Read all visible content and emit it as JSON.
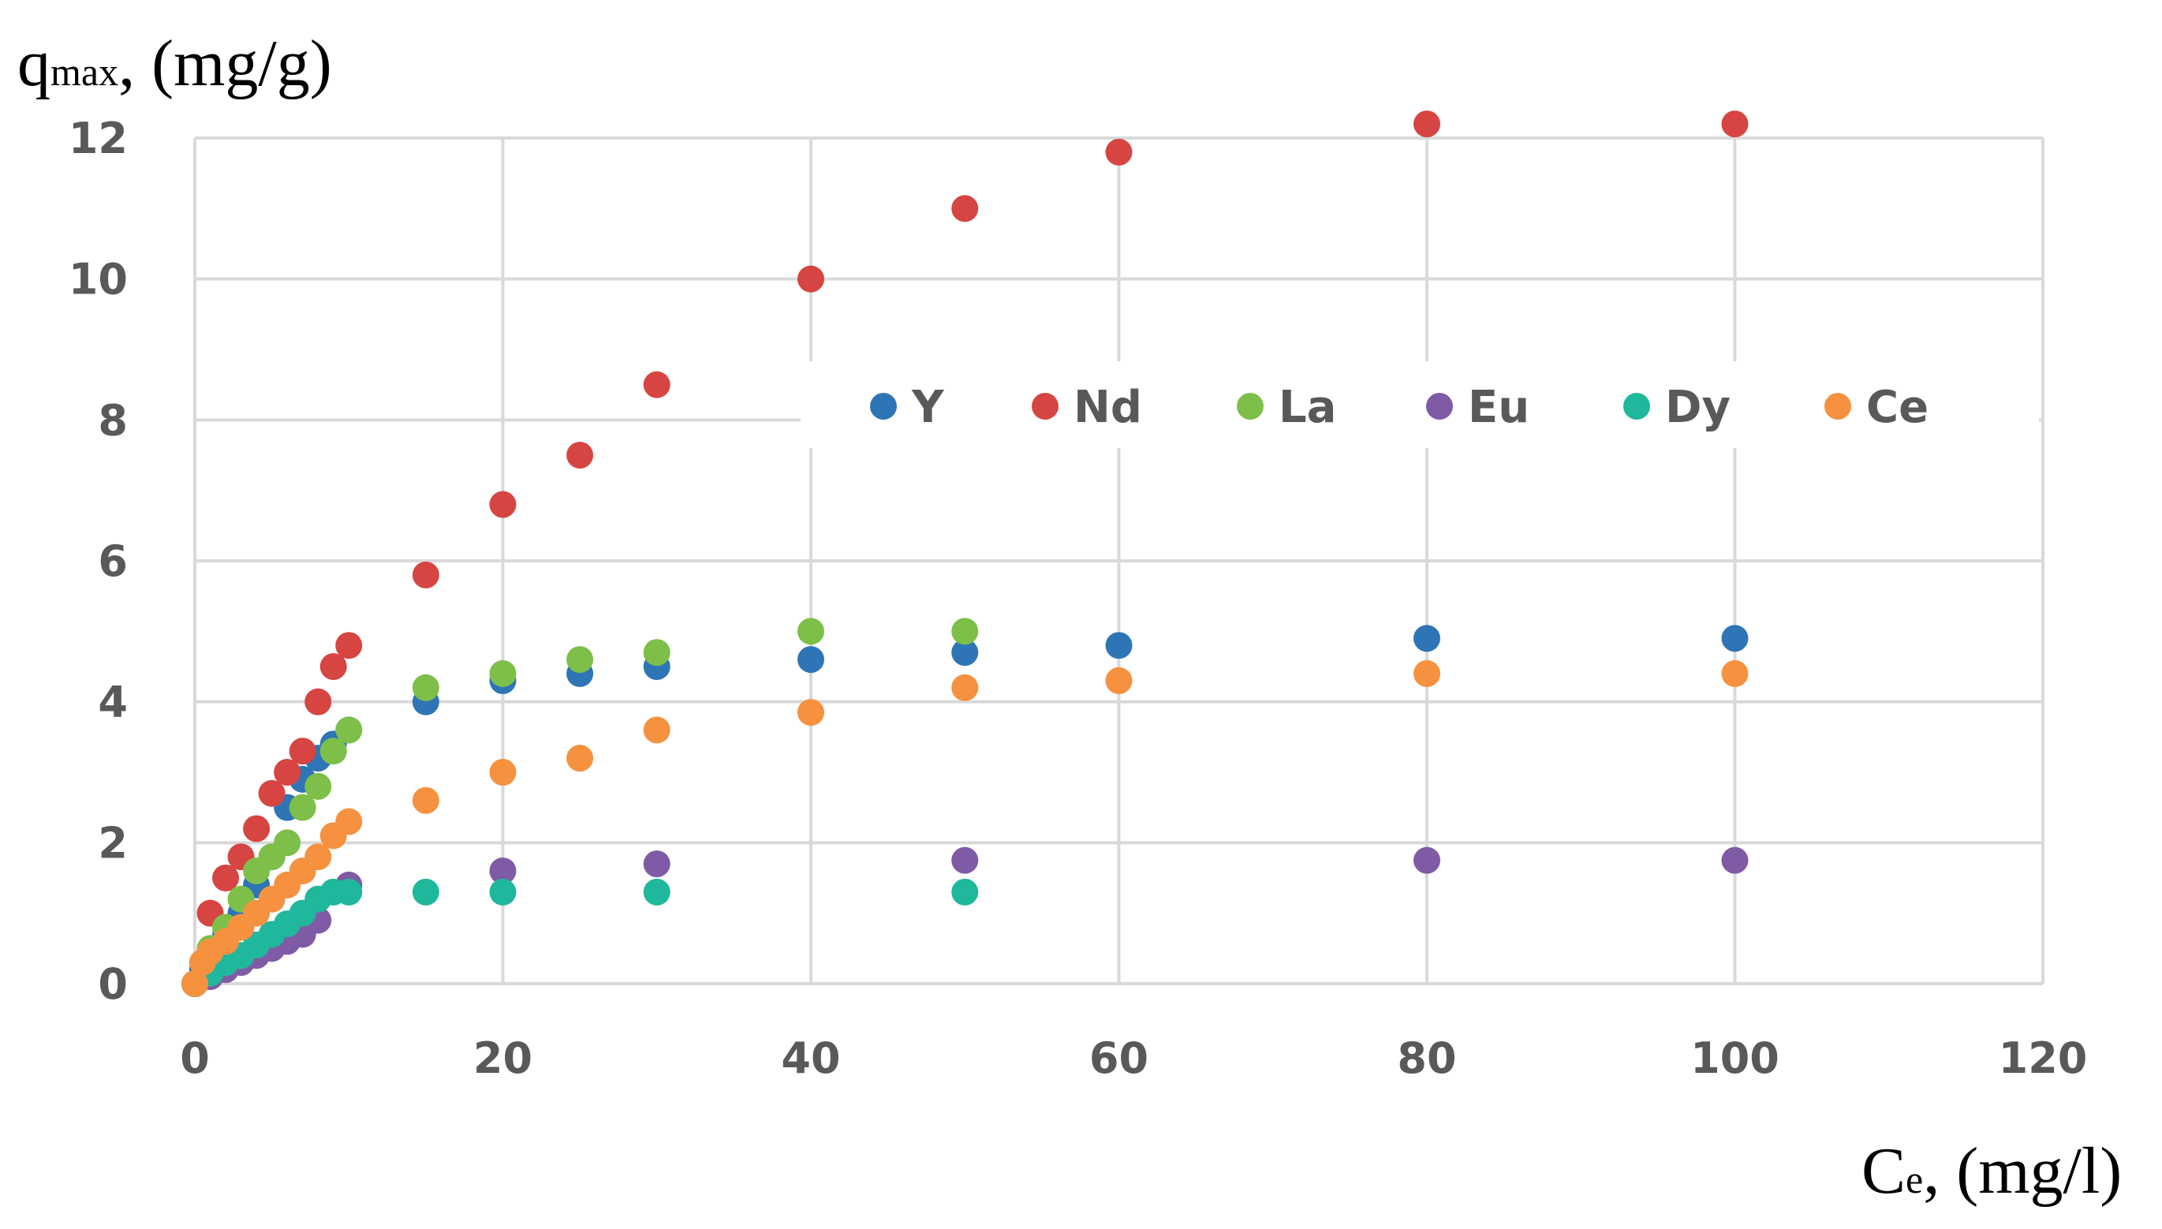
{
  "chart_data": {
    "type": "scatter",
    "ylabel_main": "q",
    "ylabel_sub": "max",
    "ylabel_rest": ", (mg/g)",
    "xlabel_main": "C",
    "xlabel_sub": "e",
    "xlabel_rest": ", (mg/l)",
    "xlim": [
      0,
      120
    ],
    "ylim": [
      0,
      12
    ],
    "xticks": [
      "0",
      "20",
      "40",
      "60",
      "80",
      "100",
      "120"
    ],
    "yticks": [
      "0",
      "2",
      "4",
      "6",
      "8",
      "10",
      "12"
    ],
    "grid": true,
    "legend_position": "upper-right inside plot",
    "series": [
      {
        "name": "Y",
        "color": "#2E75B6",
        "points": [
          [
            0,
            0
          ],
          [
            0.5,
            0.2
          ],
          [
            1,
            0.4
          ],
          [
            2,
            0.7
          ],
          [
            3,
            1.0
          ],
          [
            4,
            1.4
          ],
          [
            5,
            1.8
          ],
          [
            6,
            2.5
          ],
          [
            7,
            2.9
          ],
          [
            8,
            3.2
          ],
          [
            9,
            3.4
          ],
          [
            10,
            3.6
          ],
          [
            15,
            4.0
          ],
          [
            20,
            4.3
          ],
          [
            25,
            4.4
          ],
          [
            30,
            4.5
          ],
          [
            40,
            4.6
          ],
          [
            50,
            4.7
          ],
          [
            60,
            4.8
          ],
          [
            80,
            4.9
          ],
          [
            100,
            4.9
          ]
        ]
      },
      {
        "name": "Nd",
        "color": "#D64541",
        "points": [
          [
            0,
            0
          ],
          [
            1,
            1.0
          ],
          [
            2,
            1.5
          ],
          [
            3,
            1.8
          ],
          [
            4,
            2.2
          ],
          [
            5,
            2.7
          ],
          [
            6,
            3.0
          ],
          [
            7,
            3.3
          ],
          [
            8,
            4.0
          ],
          [
            9,
            4.5
          ],
          [
            10,
            4.8
          ],
          [
            15,
            5.8
          ],
          [
            20,
            6.8
          ],
          [
            25,
            7.5
          ],
          [
            30,
            8.5
          ],
          [
            40,
            10.0
          ],
          [
            50,
            11.0
          ],
          [
            60,
            11.8
          ],
          [
            80,
            12.2
          ],
          [
            100,
            12.2
          ]
        ]
      },
      {
        "name": "La",
        "color": "#7DBF48",
        "points": [
          [
            0,
            0
          ],
          [
            1,
            0.5
          ],
          [
            2,
            0.8
          ],
          [
            3,
            1.2
          ],
          [
            4,
            1.6
          ],
          [
            5,
            1.8
          ],
          [
            6,
            2.0
          ],
          [
            7,
            2.5
          ],
          [
            8,
            2.8
          ],
          [
            9,
            3.3
          ],
          [
            10,
            3.6
          ],
          [
            15,
            4.2
          ],
          [
            20,
            4.4
          ],
          [
            25,
            4.6
          ],
          [
            30,
            4.7
          ],
          [
            40,
            5.0
          ],
          [
            50,
            5.0
          ]
        ]
      },
      {
        "name": "Eu",
        "color": "#7F5BA6",
        "points": [
          [
            0,
            0
          ],
          [
            1,
            0.1
          ],
          [
            2,
            0.2
          ],
          [
            3,
            0.3
          ],
          [
            4,
            0.4
          ],
          [
            5,
            0.5
          ],
          [
            6,
            0.6
          ],
          [
            7,
            0.7
          ],
          [
            8,
            0.9
          ],
          [
            10,
            1.4
          ],
          [
            20,
            1.6
          ],
          [
            30,
            1.7
          ],
          [
            50,
            1.75
          ],
          [
            80,
            1.75
          ],
          [
            100,
            1.75
          ]
        ]
      },
      {
        "name": "Dy",
        "color": "#1FB89C",
        "points": [
          [
            0,
            0
          ],
          [
            1,
            0.15
          ],
          [
            2,
            0.3
          ],
          [
            3,
            0.4
          ],
          [
            4,
            0.55
          ],
          [
            5,
            0.7
          ],
          [
            6,
            0.85
          ],
          [
            7,
            1.0
          ],
          [
            8,
            1.2
          ],
          [
            9,
            1.3
          ],
          [
            10,
            1.3
          ],
          [
            15,
            1.3
          ],
          [
            20,
            1.3
          ],
          [
            30,
            1.3
          ],
          [
            50,
            1.3
          ]
        ]
      },
      {
        "name": "Ce",
        "color": "#F5913F",
        "points": [
          [
            0,
            0
          ],
          [
            0.5,
            0.3
          ],
          [
            1,
            0.45
          ],
          [
            2,
            0.6
          ],
          [
            3,
            0.8
          ],
          [
            4,
            1.0
          ],
          [
            5,
            1.2
          ],
          [
            6,
            1.4
          ],
          [
            7,
            1.6
          ],
          [
            8,
            1.8
          ],
          [
            9,
            2.1
          ],
          [
            10,
            2.3
          ],
          [
            15,
            2.6
          ],
          [
            20,
            3.0
          ],
          [
            25,
            3.2
          ],
          [
            30,
            3.6
          ],
          [
            40,
            3.85
          ],
          [
            50,
            4.2
          ],
          [
            60,
            4.3
          ],
          [
            80,
            4.4
          ],
          [
            100,
            4.4
          ]
        ]
      }
    ]
  }
}
